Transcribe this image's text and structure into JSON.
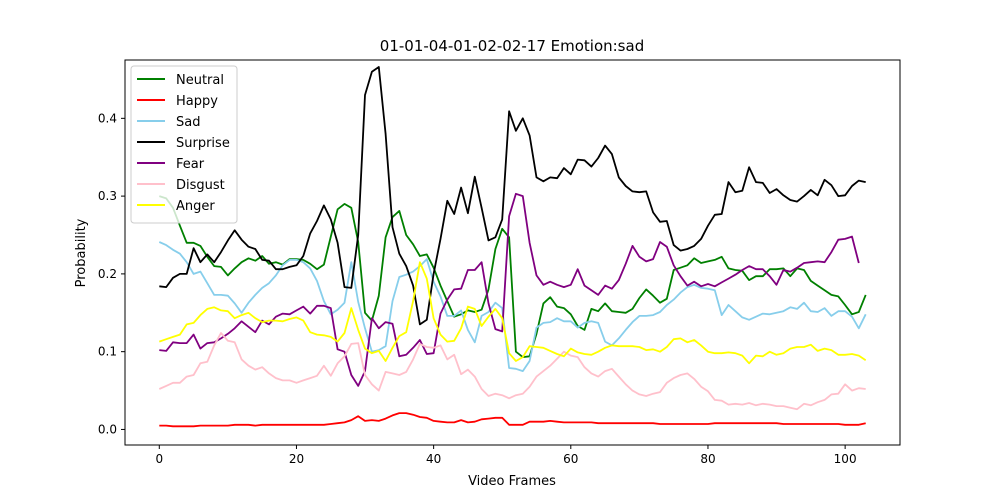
{
  "chart_data": {
    "type": "line",
    "title": "01-01-04-01-02-02-17 Emotion:sad",
    "xlabel": "Video Frames",
    "ylabel": "Probability",
    "xlim": [
      -5,
      108
    ],
    "ylim": [
      -0.02,
      0.475
    ],
    "xticks": [
      "0",
      "20",
      "40",
      "60",
      "80",
      "100"
    ],
    "yticks": [
      "0.0",
      "0.1",
      "0.2",
      "0.3",
      "0.4"
    ],
    "legend_position": "top-left",
    "grid": false,
    "series": [
      {
        "name": "Neutral",
        "color": "#008000",
        "values": [
          0.3,
          0.297,
          0.285,
          0.262,
          0.24,
          0.24,
          0.236,
          0.222,
          0.21,
          0.209,
          0.198,
          0.207,
          0.215,
          0.22,
          0.217,
          0.223,
          0.213,
          0.215,
          0.212,
          0.219,
          0.219,
          0.218,
          0.213,
          0.206,
          0.212,
          0.248,
          0.283,
          0.29,
          0.285,
          0.241,
          0.15,
          0.14,
          0.172,
          0.247,
          0.273,
          0.281,
          0.25,
          0.238,
          0.223,
          0.225,
          0.208,
          0.185,
          0.165,
          0.145,
          0.148,
          0.153,
          0.151,
          0.154,
          0.18,
          0.232,
          0.258,
          0.247,
          0.1,
          0.093,
          0.094,
          0.123,
          0.162,
          0.17,
          0.158,
          0.156,
          0.148,
          0.133,
          0.128,
          0.155,
          0.152,
          0.162,
          0.152,
          0.151,
          0.15,
          0.155,
          0.169,
          0.18,
          0.172,
          0.163,
          0.168,
          0.205,
          0.208,
          0.211,
          0.22,
          0.214,
          0.216,
          0.218,
          0.222,
          0.207,
          0.205,
          0.204,
          0.192,
          0.197,
          0.197,
          0.206,
          0.206,
          0.207,
          0.197,
          0.207,
          0.205,
          0.191,
          0.185,
          0.179,
          0.173,
          0.171,
          0.16,
          0.148,
          0.151,
          0.173
        ]
      },
      {
        "name": "Happy",
        "color": "#ff0000",
        "values": [
          0.005,
          0.005,
          0.004,
          0.004,
          0.004,
          0.004,
          0.005,
          0.005,
          0.005,
          0.005,
          0.005,
          0.006,
          0.006,
          0.006,
          0.005,
          0.006,
          0.006,
          0.006,
          0.006,
          0.006,
          0.006,
          0.006,
          0.006,
          0.006,
          0.006,
          0.007,
          0.008,
          0.009,
          0.012,
          0.017,
          0.011,
          0.012,
          0.011,
          0.014,
          0.018,
          0.021,
          0.021,
          0.019,
          0.016,
          0.015,
          0.011,
          0.01,
          0.009,
          0.009,
          0.012,
          0.009,
          0.01,
          0.013,
          0.014,
          0.015,
          0.015,
          0.006,
          0.006,
          0.006,
          0.01,
          0.01,
          0.01,
          0.011,
          0.01,
          0.009,
          0.009,
          0.009,
          0.009,
          0.009,
          0.008,
          0.008,
          0.008,
          0.008,
          0.008,
          0.008,
          0.008,
          0.008,
          0.008,
          0.007,
          0.007,
          0.007,
          0.007,
          0.007,
          0.007,
          0.007,
          0.007,
          0.008,
          0.008,
          0.008,
          0.008,
          0.008,
          0.008,
          0.008,
          0.008,
          0.008,
          0.008,
          0.007,
          0.007,
          0.007,
          0.007,
          0.007,
          0.007,
          0.007,
          0.007,
          0.007,
          0.006,
          0.006,
          0.006,
          0.008
        ]
      },
      {
        "name": "Sad",
        "color": "#87ceeb",
        "values": [
          0.241,
          0.237,
          0.231,
          0.226,
          0.215,
          0.2,
          0.203,
          0.188,
          0.173,
          0.173,
          0.172,
          0.162,
          0.15,
          0.163,
          0.173,
          0.182,
          0.188,
          0.198,
          0.211,
          0.218,
          0.218,
          0.215,
          0.207,
          0.191,
          0.165,
          0.148,
          0.154,
          0.163,
          0.215,
          0.164,
          0.13,
          0.1,
          0.102,
          0.107,
          0.165,
          0.196,
          0.199,
          0.203,
          0.21,
          0.219,
          0.19,
          0.171,
          0.146,
          0.146,
          0.153,
          0.128,
          0.112,
          0.146,
          0.151,
          0.163,
          0.156,
          0.079,
          0.078,
          0.075,
          0.088,
          0.131,
          0.137,
          0.138,
          0.143,
          0.139,
          0.139,
          0.131,
          0.137,
          0.139,
          0.137,
          0.113,
          0.108,
          0.117,
          0.128,
          0.138,
          0.146,
          0.146,
          0.147,
          0.151,
          0.16,
          0.167,
          0.176,
          0.183,
          0.186,
          0.182,
          0.181,
          0.179,
          0.147,
          0.16,
          0.152,
          0.144,
          0.141,
          0.145,
          0.149,
          0.148,
          0.15,
          0.152,
          0.157,
          0.155,
          0.163,
          0.152,
          0.151,
          0.156,
          0.146,
          0.152,
          0.152,
          0.145,
          0.13,
          0.148
        ]
      },
      {
        "name": "Surprise",
        "color": "#000000",
        "values": [
          0.184,
          0.183,
          0.195,
          0.2,
          0.2,
          0.233,
          0.215,
          0.225,
          0.215,
          0.228,
          0.243,
          0.256,
          0.244,
          0.235,
          0.232,
          0.218,
          0.217,
          0.206,
          0.206,
          0.209,
          0.211,
          0.223,
          0.252,
          0.268,
          0.288,
          0.27,
          0.24,
          0.183,
          0.182,
          0.25,
          0.43,
          0.46,
          0.466,
          0.38,
          0.26,
          0.226,
          0.21,
          0.185,
          0.135,
          0.141,
          0.2,
          0.245,
          0.294,
          0.277,
          0.311,
          0.278,
          0.325,
          0.285,
          0.243,
          0.247,
          0.27,
          0.409,
          0.384,
          0.4,
          0.378,
          0.324,
          0.319,
          0.324,
          0.323,
          0.336,
          0.328,
          0.347,
          0.346,
          0.338,
          0.349,
          0.365,
          0.354,
          0.324,
          0.313,
          0.306,
          0.305,
          0.306,
          0.279,
          0.267,
          0.268,
          0.237,
          0.23,
          0.232,
          0.236,
          0.245,
          0.262,
          0.276,
          0.277,
          0.318,
          0.305,
          0.307,
          0.337,
          0.318,
          0.317,
          0.304,
          0.309,
          0.301,
          0.295,
          0.293,
          0.3,
          0.308,
          0.301,
          0.321,
          0.314,
          0.3,
          0.301,
          0.313,
          0.32,
          0.318
        ]
      },
      {
        "name": "Fear",
        "color": "#800080",
        "values": [
          0.102,
          0.101,
          0.112,
          0.111,
          0.111,
          0.122,
          0.104,
          0.111,
          0.112,
          0.117,
          0.123,
          0.13,
          0.139,
          0.132,
          0.125,
          0.14,
          0.135,
          0.145,
          0.149,
          0.148,
          0.153,
          0.158,
          0.149,
          0.159,
          0.159,
          0.156,
          0.103,
          0.1,
          0.07,
          0.056,
          0.075,
          0.143,
          0.13,
          0.138,
          0.136,
          0.094,
          0.096,
          0.105,
          0.115,
          0.097,
          0.098,
          0.149,
          0.167,
          0.18,
          0.181,
          0.205,
          0.205,
          0.215,
          0.162,
          0.129,
          0.126,
          0.274,
          0.303,
          0.3,
          0.24,
          0.198,
          0.186,
          0.19,
          0.186,
          0.183,
          0.186,
          0.206,
          0.185,
          0.179,
          0.173,
          0.185,
          0.181,
          0.192,
          0.213,
          0.236,
          0.222,
          0.216,
          0.219,
          0.241,
          0.235,
          0.211,
          0.197,
          0.185,
          0.19,
          0.184,
          0.187,
          0.184,
          0.189,
          0.194,
          0.199,
          0.205,
          0.21,
          0.206,
          0.206,
          0.197,
          0.186,
          0.205,
          0.203,
          0.208,
          0.214,
          0.215,
          0.216,
          0.215,
          0.228,
          0.244,
          0.245,
          0.248,
          0.214
        ]
      },
      {
        "name": "Disgust",
        "color": "#ffc0cb",
        "values": [
          0.052,
          0.056,
          0.06,
          0.06,
          0.068,
          0.07,
          0.085,
          0.087,
          0.108,
          0.124,
          0.114,
          0.112,
          0.09,
          0.082,
          0.077,
          0.08,
          0.072,
          0.066,
          0.063,
          0.063,
          0.06,
          0.063,
          0.066,
          0.069,
          0.082,
          0.069,
          0.085,
          0.094,
          0.11,
          0.111,
          0.07,
          0.058,
          0.05,
          0.074,
          0.072,
          0.07,
          0.074,
          0.09,
          0.11,
          0.106,
          0.105,
          0.108,
          0.09,
          0.096,
          0.071,
          0.077,
          0.068,
          0.052,
          0.043,
          0.046,
          0.044,
          0.04,
          0.044,
          0.046,
          0.055,
          0.068,
          0.075,
          0.082,
          0.091,
          0.1,
          0.095,
          0.093,
          0.08,
          0.072,
          0.068,
          0.075,
          0.078,
          0.068,
          0.058,
          0.05,
          0.045,
          0.043,
          0.046,
          0.048,
          0.06,
          0.066,
          0.07,
          0.072,
          0.065,
          0.055,
          0.049,
          0.038,
          0.037,
          0.032,
          0.033,
          0.032,
          0.034,
          0.031,
          0.033,
          0.032,
          0.03,
          0.03,
          0.028,
          0.026,
          0.033,
          0.031,
          0.035,
          0.038,
          0.045,
          0.046,
          0.058,
          0.05,
          0.053,
          0.052
        ]
      },
      {
        "name": "Anger",
        "color": "#ffff00",
        "values": [
          0.113,
          0.116,
          0.119,
          0.122,
          0.135,
          0.137,
          0.147,
          0.155,
          0.157,
          0.153,
          0.152,
          0.143,
          0.147,
          0.15,
          0.143,
          0.138,
          0.14,
          0.14,
          0.139,
          0.142,
          0.144,
          0.14,
          0.125,
          0.122,
          0.121,
          0.119,
          0.113,
          0.124,
          0.156,
          0.128,
          0.104,
          0.098,
          0.101,
          0.088,
          0.105,
          0.12,
          0.125,
          0.165,
          0.215,
          0.194,
          0.143,
          0.122,
          0.113,
          0.114,
          0.13,
          0.158,
          0.155,
          0.133,
          0.145,
          0.155,
          0.143,
          0.098,
          0.088,
          0.093,
          0.107,
          0.106,
          0.105,
          0.101,
          0.097,
          0.094,
          0.104,
          0.099,
          0.097,
          0.096,
          0.1,
          0.105,
          0.108,
          0.107,
          0.107,
          0.107,
          0.106,
          0.102,
          0.103,
          0.1,
          0.106,
          0.116,
          0.117,
          0.112,
          0.115,
          0.108,
          0.1,
          0.098,
          0.098,
          0.099,
          0.098,
          0.095,
          0.085,
          0.095,
          0.094,
          0.1,
          0.096,
          0.098,
          0.104,
          0.106,
          0.106,
          0.109,
          0.101,
          0.104,
          0.102,
          0.096,
          0.096,
          0.097,
          0.095,
          0.089
        ]
      }
    ]
  }
}
